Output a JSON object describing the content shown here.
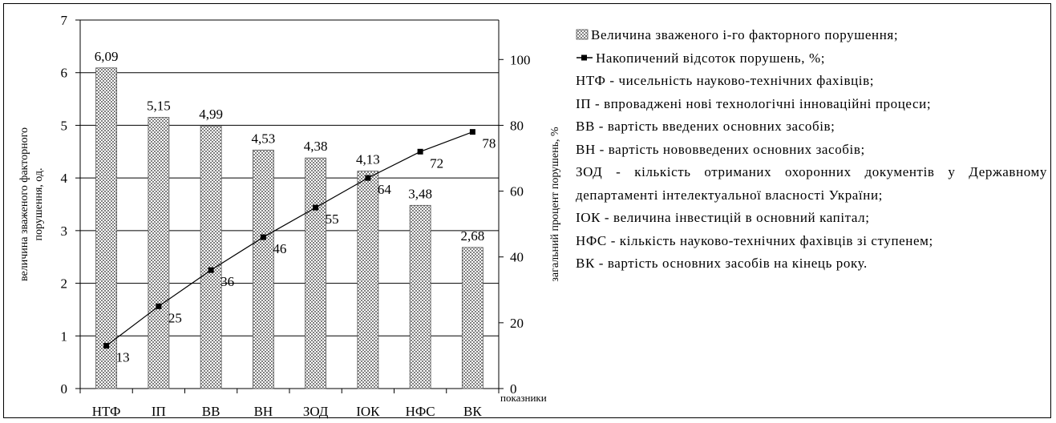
{
  "chart_data": {
    "type": "pareto",
    "categories": [
      "НТФ",
      "ІП",
      "ВВ",
      "ВН",
      "ЗОД",
      "ІОК",
      "НФС",
      "ВК"
    ],
    "series": [
      {
        "name": "Величина зваженого і-го факторного порушення;",
        "type": "bar",
        "color": "#808080",
        "values": [
          6.09,
          5.15,
          4.99,
          4.53,
          4.38,
          4.13,
          3.48,
          2.68
        ],
        "value_labels": [
          "6,09",
          "5,15",
          "4,99",
          "4,53",
          "4,38",
          "4,13",
          "3,48",
          "2,68"
        ]
      },
      {
        "name": "Накопичений відсоток порушень, %;",
        "type": "line",
        "color": "#000000",
        "axis": "y2",
        "values": [
          13,
          25,
          36,
          46,
          55,
          64,
          72,
          78
        ]
      }
    ],
    "ylabel": [
      "величина зваженого факторного",
      "порушення, од."
    ],
    "y2label": "загальний процент порушень, %",
    "xlabel": "показники",
    "ylim": [
      0,
      7
    ],
    "yticks": [
      0,
      1,
      2,
      3,
      4,
      5,
      6,
      7
    ],
    "y2lim": [
      0,
      112
    ],
    "y2ticks": [
      0,
      20,
      40,
      60,
      80,
      100
    ],
    "grid": true,
    "legend_position": "right",
    "notes": [
      "НТФ - чисельність науково-технічних фахівців;",
      "ІП - впроваджені нові технологічні інноваційні процеси;",
      "ВВ - вартість введених основних засобів;",
      "ВН - вартість нововведених основних засобів;",
      "ЗОД - кількість отриманих охоронних документів у Державному департаменті інтелектуальної власності України;",
      "ІОК - величина інвестицій в основний капітал;",
      "НФС - кількість науково-технічних фахівців зі ступенем;",
      "ВК - вартість основних засобів на кінець року."
    ]
  }
}
